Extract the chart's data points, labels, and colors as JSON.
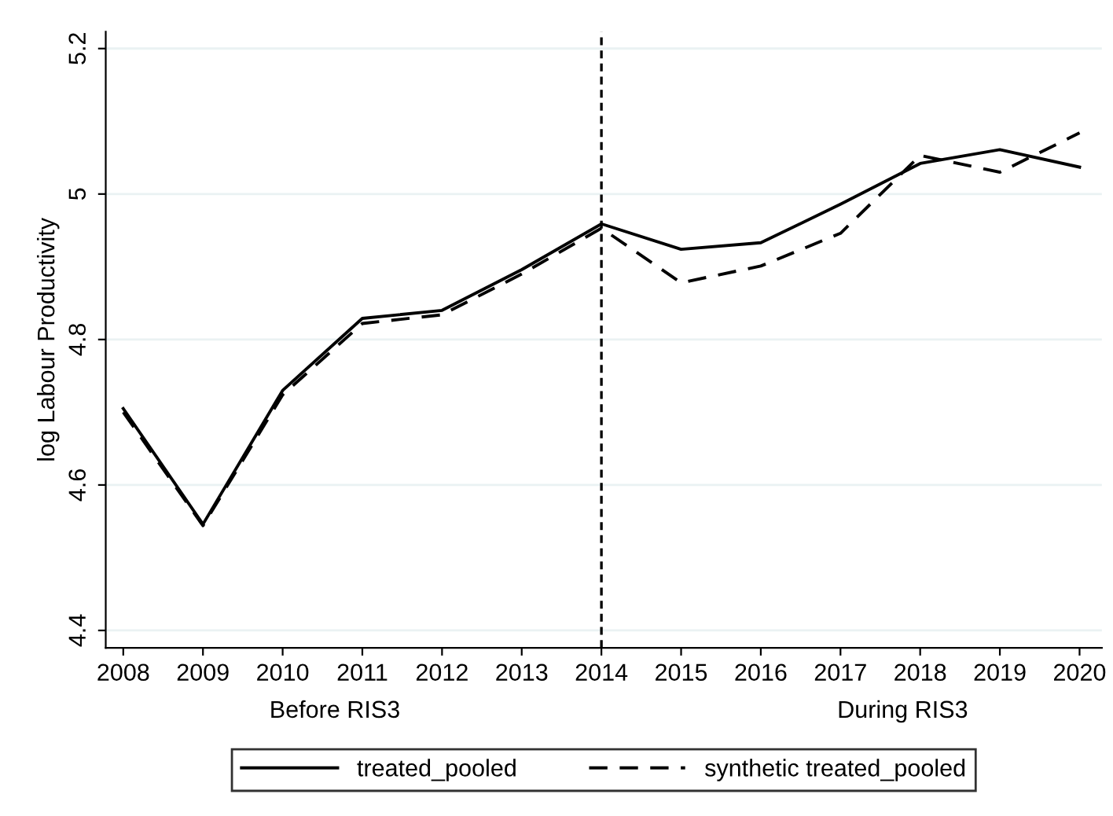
{
  "chart_data": {
    "type": "line",
    "ylabel": "log Labour Productivity",
    "x": [
      2008,
      2009,
      2010,
      2011,
      2012,
      2013,
      2014,
      2015,
      2016,
      2017,
      2018,
      2019,
      2020
    ],
    "series": [
      {
        "name": "treated_pooled",
        "color": "#000000",
        "line_style": "solid",
        "values": [
          4.705,
          4.546,
          4.73,
          4.829,
          4.84,
          4.896,
          4.959,
          4.924,
          4.933,
          4.986,
          5.042,
          5.061,
          5.037
        ]
      },
      {
        "name": "synthetic treated_pooled",
        "color": "#000000",
        "line_style": "dashed",
        "values": [
          4.7,
          4.544,
          4.724,
          4.822,
          4.834,
          4.89,
          4.953,
          4.878,
          4.901,
          4.946,
          5.053,
          5.03,
          5.084
        ]
      }
    ],
    "xlim": [
      2007.78,
      2020.28
    ],
    "ylim": [
      4.376,
      5.223
    ],
    "xticks": [
      2008,
      2009,
      2010,
      2011,
      2012,
      2013,
      2014,
      2015,
      2016,
      2017,
      2018,
      2019,
      2020
    ],
    "yticks": [
      4.4,
      4.6,
      4.8,
      {
        "value": 5,
        "label": "5"
      },
      5.2
    ],
    "ref_lines": [
      {
        "axis": "x",
        "value": 2014,
        "color": "#000000",
        "line_style": "dashed"
      }
    ],
    "annotations": [
      "Before RIS3",
      "During RIS3"
    ],
    "grid": "y",
    "legend": "bottom",
    "marker": "none"
  }
}
